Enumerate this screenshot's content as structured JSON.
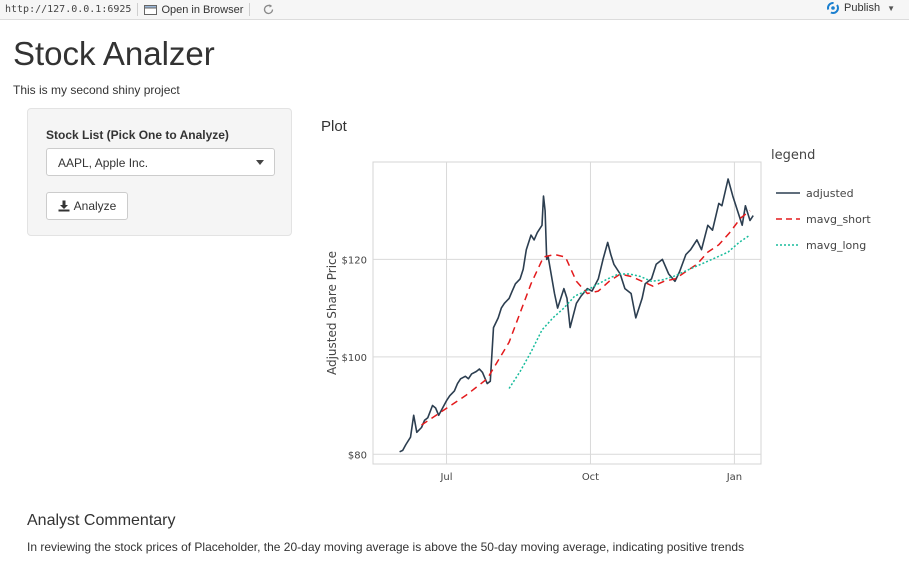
{
  "toolbar": {
    "url": "http://127.0.0.1:6925",
    "open_in_browser": "Open in Browser",
    "publish": "Publish"
  },
  "app": {
    "title": "Stock Analzer",
    "subtitle": "This is my second shiny project"
  },
  "sidebar": {
    "select_label": "Stock List (Pick One to Analyze)",
    "select_value": "AAPL, Apple Inc.",
    "analyze_label": "Analyze"
  },
  "plot": {
    "heading": "Plot"
  },
  "commentary": {
    "title": "Analyst Commentary",
    "text": "In reviewing the stock prices of Placeholder, the 20-day moving average is above the 50-day moving average, indicating positive trends"
  },
  "colors": {
    "adjusted": "#2c3e50",
    "mavg_short": "#e31a1c",
    "mavg_long": "#18bc9c",
    "grid": "#d9d9d9",
    "publish_icon": "#1a7fcf"
  },
  "chart_data": {
    "type": "line",
    "title": "",
    "xlabel": "",
    "ylabel": "Adjusted Share Price",
    "legend_title": "legend",
    "legend_position": "right",
    "grid": true,
    "x_ticks": [
      {
        "label": "Jul",
        "date": "2020-07-01"
      },
      {
        "label": "Oct",
        "date": "2020-10-01"
      },
      {
        "label": "Jan",
        "date": "2021-01-01"
      }
    ],
    "y_ticks": [
      {
        "label": "$80",
        "value": 80
      },
      {
        "label": "$100",
        "value": 100
      },
      {
        "label": "$120",
        "value": 120
      }
    ],
    "xlim": [
      "2020-05-15",
      "2021-01-18"
    ],
    "ylim": [
      78,
      140
    ],
    "series": [
      {
        "name": "adjusted",
        "style": "solid",
        "x": [
          "2020-06-01",
          "2020-06-03",
          "2020-06-05",
          "2020-06-08",
          "2020-06-10",
          "2020-06-12",
          "2020-06-15",
          "2020-06-17",
          "2020-06-19",
          "2020-06-22",
          "2020-06-24",
          "2020-06-26",
          "2020-06-29",
          "2020-07-01",
          "2020-07-03",
          "2020-07-06",
          "2020-07-08",
          "2020-07-10",
          "2020-07-13",
          "2020-07-15",
          "2020-07-17",
          "2020-07-20",
          "2020-07-22",
          "2020-07-24",
          "2020-07-27",
          "2020-07-29",
          "2020-07-31",
          "2020-08-03",
          "2020-08-05",
          "2020-08-07",
          "2020-08-10",
          "2020-08-12",
          "2020-08-14",
          "2020-08-17",
          "2020-08-19",
          "2020-08-21",
          "2020-08-24",
          "2020-08-26",
          "2020-08-28",
          "2020-08-31",
          "2020-09-01",
          "2020-09-02",
          "2020-09-03",
          "2020-09-04",
          "2020-09-08",
          "2020-09-10",
          "2020-09-14",
          "2020-09-16",
          "2020-09-18",
          "2020-09-22",
          "2020-09-25",
          "2020-09-29",
          "2020-10-02",
          "2020-10-06",
          "2020-10-09",
          "2020-10-12",
          "2020-10-14",
          "2020-10-16",
          "2020-10-20",
          "2020-10-23",
          "2020-10-27",
          "2020-10-30",
          "2020-11-03",
          "2020-11-05",
          "2020-11-09",
          "2020-11-12",
          "2020-11-16",
          "2020-11-20",
          "2020-11-24",
          "2020-11-27",
          "2020-12-01",
          "2020-12-04",
          "2020-12-08",
          "2020-12-11",
          "2020-12-15",
          "2020-12-18",
          "2020-12-22",
          "2020-12-24",
          "2020-12-28",
          "2020-12-31",
          "2021-01-04",
          "2021-01-06",
          "2021-01-08",
          "2021-01-11",
          "2021-01-13"
        ],
        "values": [
          80.5,
          80.8,
          82.0,
          83.5,
          88.0,
          84.5,
          85.5,
          87.0,
          87.5,
          90.0,
          89.5,
          88.0,
          89.8,
          91.0,
          92.0,
          93.0,
          94.5,
          95.5,
          96.0,
          95.5,
          96.5,
          97.0,
          97.5,
          96.8,
          94.5,
          95.0,
          106.0,
          108.0,
          110.0,
          111.0,
          112.0,
          113.5,
          115.0,
          116.0,
          118.0,
          122.0,
          125.0,
          124.0,
          125.5,
          127.0,
          133.0,
          130.0,
          120.0,
          120.5,
          113.0,
          110.0,
          114.0,
          112.0,
          106.0,
          111.0,
          112.5,
          114.0,
          113.5,
          116.0,
          120.0,
          123.5,
          121.0,
          119.0,
          117.0,
          114.0,
          113.0,
          108.0,
          112.0,
          115.0,
          116.0,
          119.0,
          120.0,
          117.0,
          115.5,
          117.5,
          121.0,
          122.0,
          124.0,
          122.0,
          127.0,
          126.0,
          131.5,
          131.0,
          136.5,
          133.0,
          129.0,
          127.0,
          131.0,
          128.0,
          129.0
        ]
      },
      {
        "name": "mavg_short",
        "style": "dashed",
        "x": [
          "2020-06-15",
          "2020-06-29",
          "2020-07-13",
          "2020-07-27",
          "2020-08-10",
          "2020-08-24",
          "2020-09-01",
          "2020-09-08",
          "2020-09-15",
          "2020-09-22",
          "2020-09-29",
          "2020-10-06",
          "2020-10-13",
          "2020-10-20",
          "2020-10-27",
          "2020-11-03",
          "2020-11-10",
          "2020-11-17",
          "2020-11-24",
          "2020-12-01",
          "2020-12-08",
          "2020-12-15",
          "2020-12-22",
          "2020-12-29",
          "2021-01-05",
          "2021-01-11"
        ],
        "values": [
          86.0,
          89.0,
          92.0,
          95.5,
          103.0,
          115.0,
          120.5,
          121.0,
          120.5,
          115.5,
          113.0,
          113.5,
          115.5,
          117.0,
          116.5,
          115.5,
          114.5,
          115.5,
          116.0,
          117.5,
          119.0,
          121.5,
          123.0,
          125.5,
          128.5,
          130.0
        ]
      },
      {
        "name": "mavg_long",
        "style": "dotted",
        "x": [
          "2020-08-10",
          "2020-08-17",
          "2020-08-24",
          "2020-08-31",
          "2020-09-07",
          "2020-09-14",
          "2020-09-21",
          "2020-09-28",
          "2020-10-05",
          "2020-10-12",
          "2020-10-19",
          "2020-10-26",
          "2020-11-02",
          "2020-11-09",
          "2020-11-16",
          "2020-11-23",
          "2020-11-30",
          "2020-12-07",
          "2020-12-14",
          "2020-12-21",
          "2020-12-28",
          "2021-01-04",
          "2021-01-11"
        ],
        "values": [
          93.5,
          97.0,
          101.0,
          105.5,
          108.0,
          110.0,
          112.5,
          113.5,
          114.8,
          116.0,
          117.0,
          117.0,
          116.5,
          115.5,
          115.8,
          116.5,
          117.5,
          118.5,
          119.5,
          120.5,
          121.5,
          123.5,
          125.0
        ]
      }
    ]
  }
}
